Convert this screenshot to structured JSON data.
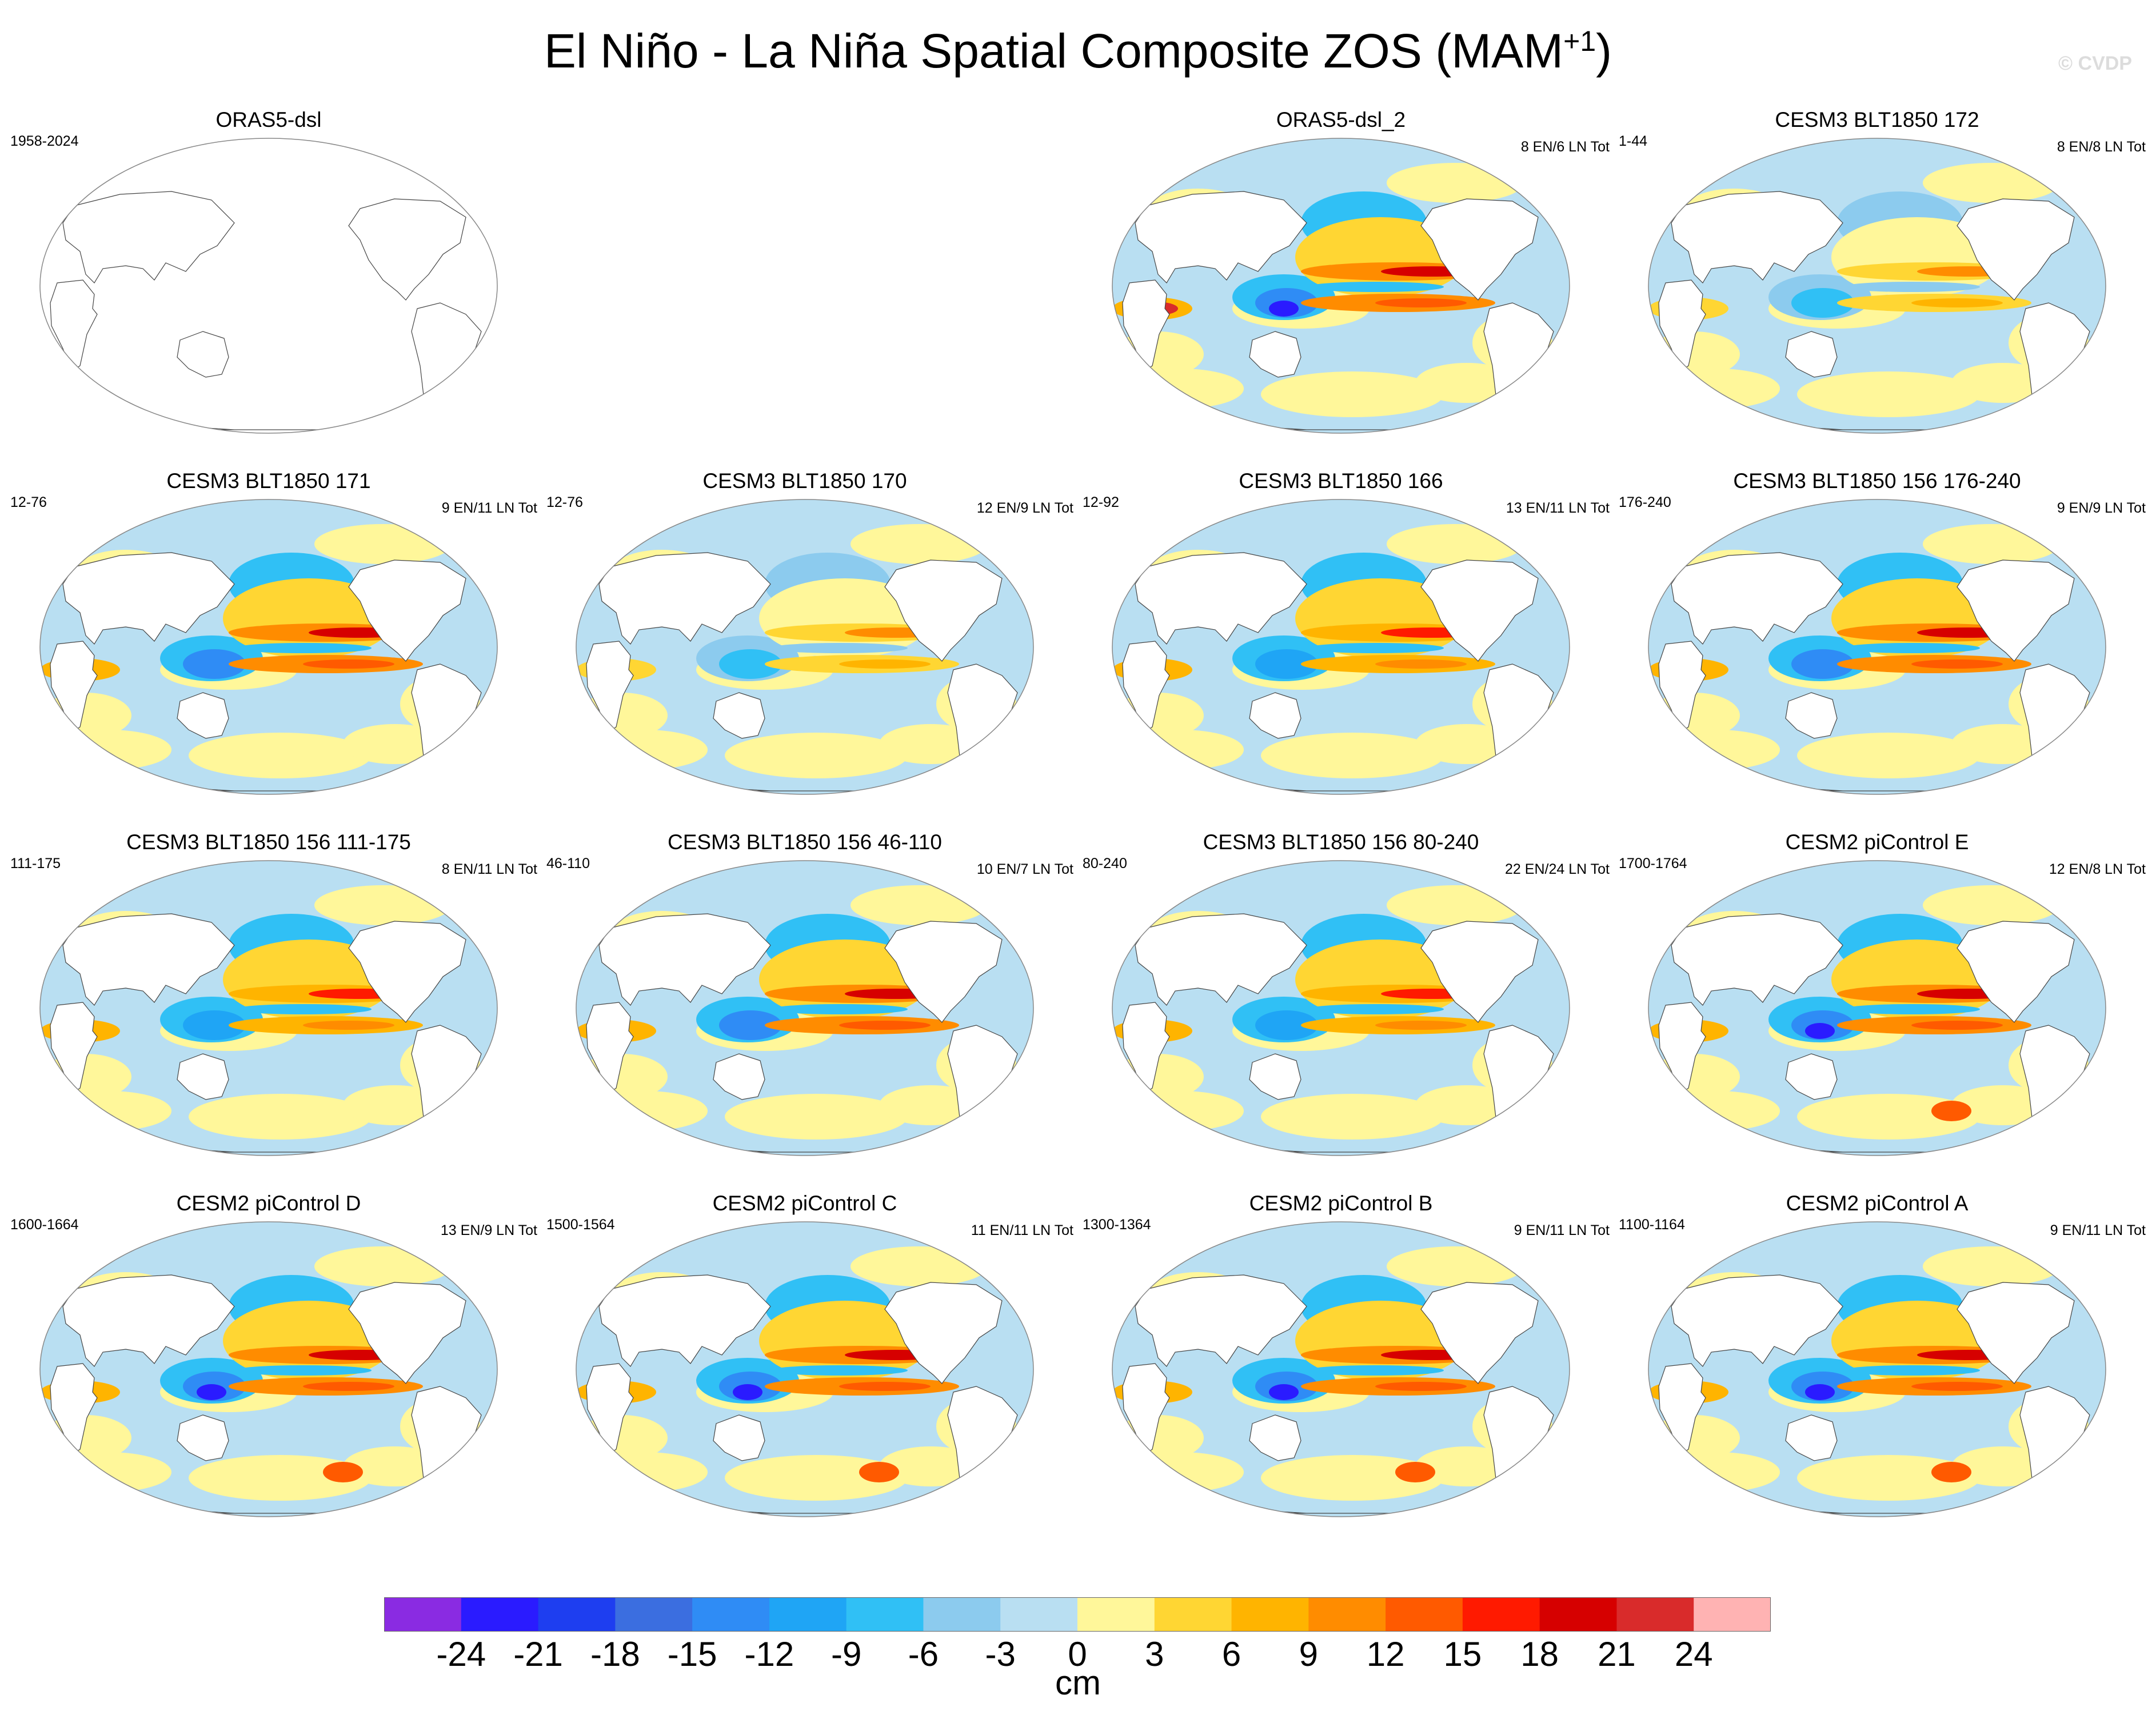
{
  "title": {
    "main": "El Niño - La Niña Spatial Composite ZOS (MAM",
    "sup": "+1",
    "close": ")"
  },
  "watermark": "© CVDP",
  "colors": {
    "land": "#ffffff",
    "coast": "#444444",
    "ocean_background": "#b9dff2",
    "warm_accent": "#ff3a00",
    "cool_accent": "#1a43e0"
  },
  "panels": [
    {
      "id": "p0",
      "title": "ORAS5-dsl",
      "left": "1958-2024",
      "right": "",
      "style": "empty"
    },
    {
      "id": "p1",
      "title": "ORAS5-dsl_2",
      "left": "",
      "right": "8 EN/6 LN Tot",
      "style": "obs"
    },
    {
      "id": "p2",
      "title": "CESM3 BLT1850 172",
      "left": "1-44",
      "right": "8 EN/8 LN Tot",
      "style": "weak"
    },
    {
      "id": "p3",
      "title": "CESM3 BLT1850 171",
      "left": "12-76",
      "right": "9 EN/11 LN Tot",
      "style": "strong"
    },
    {
      "id": "p4",
      "title": "CESM3 BLT1850 170",
      "left": "12-76",
      "right": "12 EN/9 LN Tot",
      "style": "weak"
    },
    {
      "id": "p5",
      "title": "CESM3 BLT1850 166",
      "left": "12-92",
      "right": "13 EN/11 LN Tot",
      "style": "medium"
    },
    {
      "id": "p6",
      "title": "CESM3 BLT1850 156 176-240",
      "left": "176-240",
      "right": "9 EN/9 LN Tot",
      "style": "strong"
    },
    {
      "id": "p7",
      "title": "CESM3 BLT1850 156 111-175",
      "left": "111-175",
      "right": "8 EN/11 LN Tot",
      "style": "medium"
    },
    {
      "id": "p8",
      "title": "CESM3 BLT1850 156 46-110",
      "left": "46-110",
      "right": "10 EN/7 LN Tot",
      "style": "strong"
    },
    {
      "id": "p9",
      "title": "CESM3 BLT1850 156 80-240",
      "left": "80-240",
      "right": "22 EN/24 LN Tot",
      "style": "medium"
    },
    {
      "id": "p10",
      "title": "CESM2 piControl E",
      "left": "1700-1764",
      "right": "12 EN/8 LN Tot",
      "style": "cesm2"
    },
    {
      "id": "p11",
      "title": "CESM2 piControl D",
      "left": "1600-1664",
      "right": "13 EN/9 LN Tot",
      "style": "cesm2"
    },
    {
      "id": "p12",
      "title": "CESM2 piControl C",
      "left": "1500-1564",
      "right": "11 EN/11 LN Tot",
      "style": "cesm2"
    },
    {
      "id": "p13",
      "title": "CESM2 piControl B",
      "left": "1300-1364",
      "right": "9 EN/11 LN Tot",
      "style": "cesm2"
    },
    {
      "id": "p14",
      "title": "CESM2 piControl A",
      "left": "1100-1164",
      "right": "9 EN/11 LN Tot",
      "style": "cesm2"
    }
  ],
  "colorbar": {
    "colors": [
      "#8a2be2",
      "#2a1bff",
      "#1e3ef0",
      "#3b6ee0",
      "#2f8cf5",
      "#1fa5f5",
      "#30c0f5",
      "#8ccbee",
      "#b9dff2",
      "#fff79a",
      "#ffd633",
      "#ffb400",
      "#ff8c00",
      "#ff5a00",
      "#ff1a00",
      "#d60000",
      "#d92b2b",
      "#ffb3b3"
    ],
    "labels": [
      "-24",
      "-21",
      "-18",
      "-15",
      "-12",
      "-9",
      "-6",
      "-3",
      "0",
      "3",
      "6",
      "9",
      "12",
      "15",
      "18",
      "21",
      "24"
    ],
    "units": "cm"
  }
}
